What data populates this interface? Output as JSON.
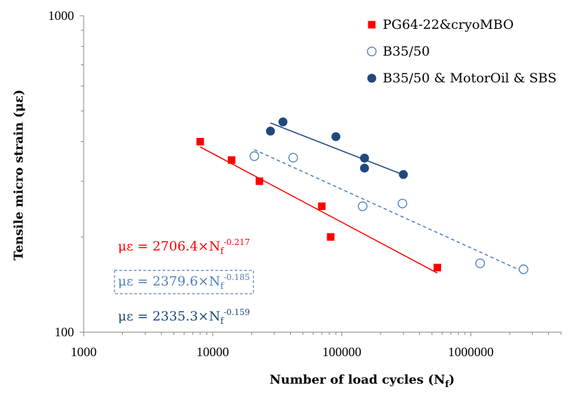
{
  "chart_data": {
    "type": "scatter",
    "xscale": "log",
    "yscale": "log",
    "xlim": [
      1000,
      5000000
    ],
    "ylim": [
      100,
      1000
    ],
    "xticks": [
      "1000",
      "10000",
      "100000",
      "1000000"
    ],
    "yticks": [
      "100",
      "1000"
    ],
    "xlabel": {
      "main": "Number of load cycles (N",
      "sub": "f",
      "close": ")"
    },
    "ylabel": "Tensile micro strain (με)",
    "grid": false,
    "legend_position": "top-right",
    "series": [
      {
        "name": "PG64-22&cryoMBO",
        "marker": "square-filled",
        "color": "#ff0000",
        "line_style": "solid",
        "points": [
          [
            8000,
            400
          ],
          [
            14000,
            350
          ],
          [
            23000,
            300
          ],
          [
            70000,
            250
          ],
          [
            82000,
            200
          ],
          [
            550000,
            160
          ]
        ],
        "fit": {
          "a": 2706.4,
          "b": -0.217,
          "x_range": [
            8000,
            550000
          ]
        },
        "equation": {
          "lhs": "με = 2706.4×N",
          "sub": "f",
          "sup": "-0.217"
        }
      },
      {
        "name": "B35/50",
        "marker": "circle-open",
        "color": "#4f81bd",
        "line_style": "dashed",
        "points": [
          [
            21000,
            360
          ],
          [
            42000,
            356
          ],
          [
            145000,
            250
          ],
          [
            295000,
            255
          ],
          [
            1180000,
            165
          ],
          [
            2560000,
            158
          ]
        ],
        "fit": {
          "a": 2379.6,
          "b": -0.185,
          "x_range": [
            21000,
            2560000
          ]
        },
        "equation": {
          "lhs": "με = 2379.6×N",
          "sub": "f",
          "sup": "-0.185"
        }
      },
      {
        "name": "B35/50 & MotorOil & SBS",
        "marker": "circle-filled",
        "color": "#1f497d",
        "line_style": "solid",
        "points": [
          [
            28000,
            432
          ],
          [
            35000,
            462
          ],
          [
            90000,
            415
          ],
          [
            150000,
            355
          ],
          [
            150000,
            330
          ],
          [
            300000,
            315
          ]
        ],
        "fit": {
          "a": 2335.3,
          "b": -0.159,
          "x_range": [
            28000,
            300000
          ]
        },
        "equation": {
          "lhs": "με = 2335.3×N",
          "sub": "f",
          "sup": "-0.159"
        }
      }
    ]
  }
}
